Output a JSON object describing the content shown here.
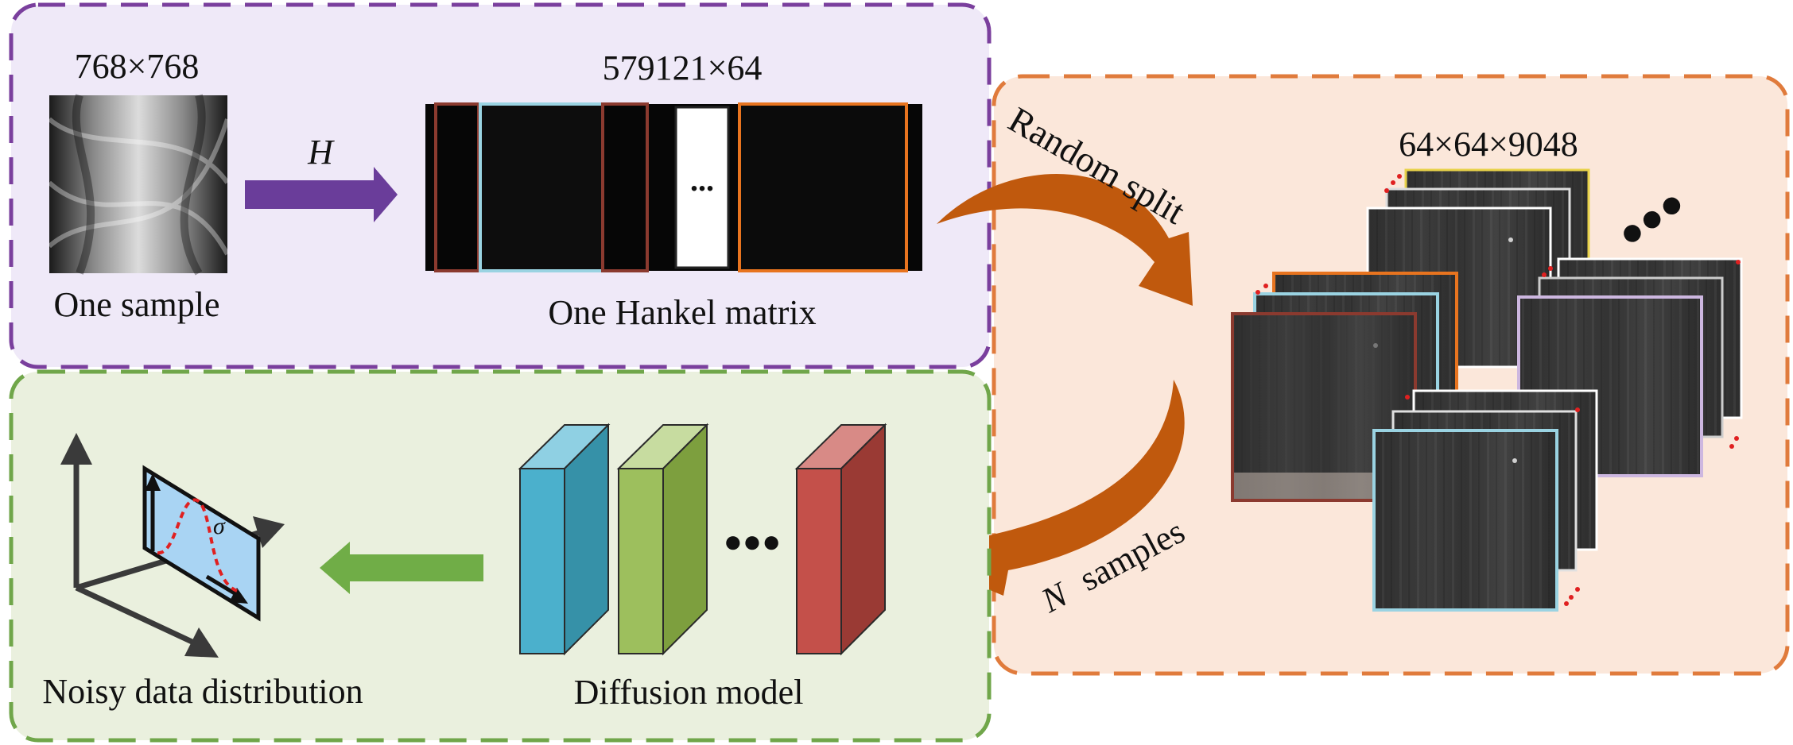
{
  "panels": {
    "hankel": {
      "sample_size": "768×768",
      "sample_label": "One sample",
      "operator": "H",
      "matrix_size": "579121×64",
      "matrix_label": "One Hankel matrix",
      "ellipsis": "...",
      "fill": "#efe9f8",
      "border": "#7a3f9d"
    },
    "split": {
      "arrow_top_label": "Random split",
      "stack_size": "64×64×9048",
      "arrow_bottom_n": "N",
      "arrow_bottom_label": "samples",
      "fill": "#fbe7da",
      "border": "#e07b3c"
    },
    "diffusion": {
      "model_label": "Diffusion model",
      "ellipsis": "●●●",
      "distribution_label": "Noisy data distribution",
      "sigma": "σ",
      "fill": "#eaf0de",
      "border": "#70a64a"
    }
  },
  "colors": {
    "purple_arrow": "#6a3d9a",
    "orange_arrow": "#c0590d",
    "green_arrow": "#70ad47",
    "block_blue": "#4bb0cc",
    "block_green": "#9dbf5d",
    "block_red": "#c4504a"
  }
}
